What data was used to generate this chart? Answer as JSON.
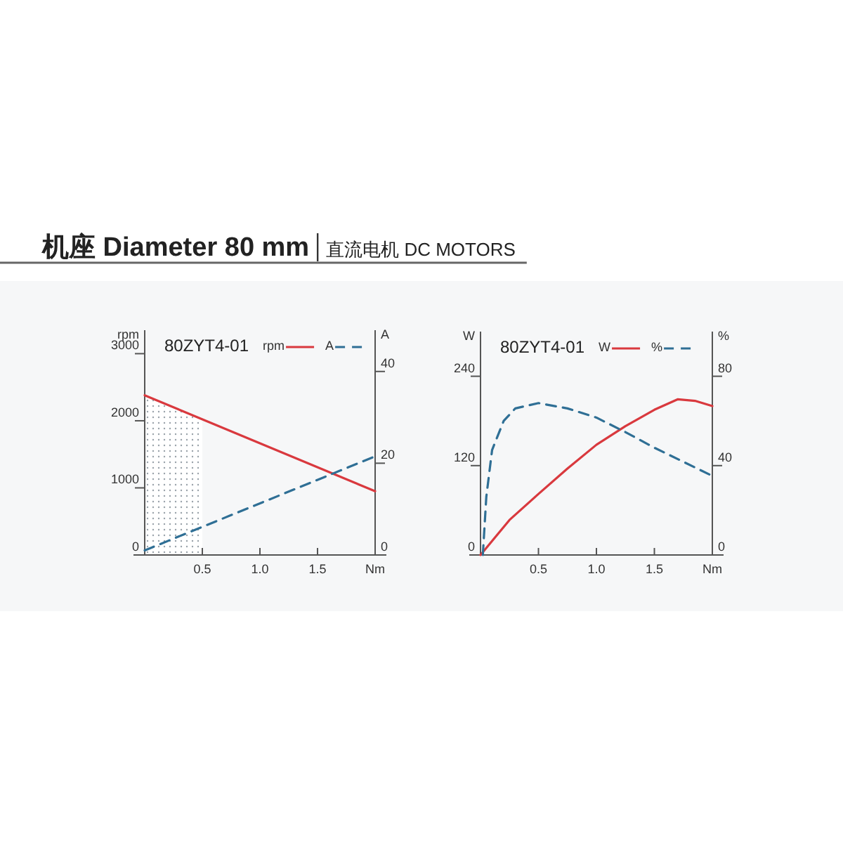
{
  "chart_data": [
    {
      "type": "line",
      "title": "80ZYT4-01",
      "annotations": [
        "机座 Diameter 80 mm",
        "直流电机 DC MOTORS"
      ],
      "xlabel": "Nm",
      "ylabel": "rpm",
      "y2label": "A",
      "x": [
        0,
        2
      ],
      "xlim": [
        0,
        2
      ],
      "xticks": [
        {
          "value": 0.5,
          "label": "0.5"
        },
        {
          "value": 1.0,
          "label": "1.0"
        },
        {
          "value": 1.5,
          "label": "1.5"
        }
      ],
      "ylim": [
        0,
        3350
      ],
      "yticks": [
        0,
        1000,
        2000,
        3000
      ],
      "y2lim": [
        0,
        49
      ],
      "y2ticks": [
        0,
        20,
        40
      ],
      "series": [
        {
          "name": "rpm",
          "color": "#d9393e",
          "values": [
            2380,
            950
          ]
        },
        {
          "name": "A",
          "color": "#2f6f95",
          "axis": "y2",
          "line_style": "dashed",
          "values": [
            1,
            21.5
          ]
        }
      ],
      "bands": [
        {
          "axis": "x",
          "from": 0,
          "to": 0.5,
          "color": "#9aa3aa"
        }
      ],
      "legend": "top"
    },
    {
      "type": "line",
      "title": "80ZYT4-01",
      "xlabel": "Nm",
      "ylabel": "W",
      "y2label": "%",
      "xlim": [
        0,
        2
      ],
      "xticks": [
        {
          "value": 0.5,
          "label": "0.5"
        },
        {
          "value": 1.0,
          "label": "1.0"
        },
        {
          "value": 1.5,
          "label": "1.5"
        }
      ],
      "ylim": [
        0,
        300
      ],
      "yticks": [
        0,
        120,
        240
      ],
      "y2lim": [
        0,
        100
      ],
      "y2ticks": [
        0,
        40,
        80
      ],
      "series": [
        {
          "name": "W",
          "color": "#d9393e",
          "x": [
            0,
            0.25,
            0.5,
            0.75,
            1.0,
            1.25,
            1.5,
            1.7,
            1.85,
            2.0
          ],
          "values": [
            0,
            47,
            82,
            116,
            148,
            173,
            195,
            209,
            207,
            200
          ]
        },
        {
          "name": "%",
          "color": "#2f6f95",
          "axis": "y2",
          "line_style": "dashed",
          "x": [
            0.02,
            0.05,
            0.1,
            0.2,
            0.3,
            0.5,
            0.75,
            1.0,
            1.25,
            1.5,
            1.75,
            2.0
          ],
          "values": [
            0,
            26,
            47,
            60,
            65.6,
            68,
            65.6,
            61.5,
            55,
            48,
            41.7,
            35.4
          ]
        }
      ],
      "legend": "top"
    }
  ]
}
